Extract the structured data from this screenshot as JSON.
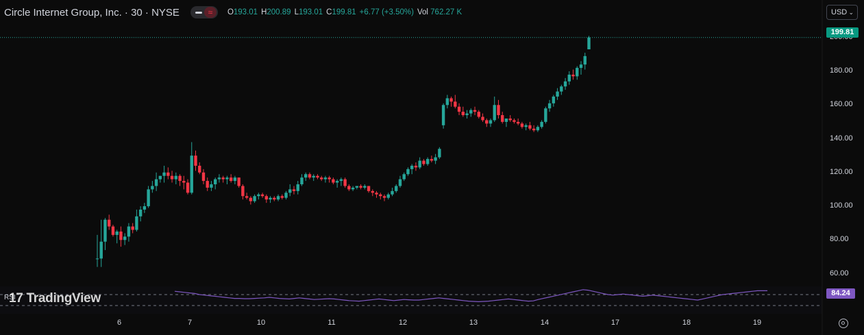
{
  "header": {
    "symbol": "Circle Internet Group, Inc. · 30 · NYSE",
    "open_label": "O",
    "open": "193.01",
    "high_label": "H",
    "high": "200.89",
    "low_label": "L",
    "low": "193.01",
    "close_label": "C",
    "close": "199.81",
    "change": "+6.77 (+3.50%)",
    "vol_label": "Vol",
    "volume": "762.27 K",
    "currency": "USD"
  },
  "colors": {
    "up": "#26a69a",
    "down": "#f23645",
    "rsi": "#7e57c2",
    "price_tag": "#089981"
  },
  "last_price_tag": "199.81",
  "rsi": {
    "label": "RSI",
    "value": "84.24"
  },
  "watermark": {
    "mark": "17",
    "brand": "Trading",
    "brand2": "View"
  },
  "chart_data": {
    "type": "candlestick",
    "title": "Circle Internet Group, Inc. · 30 · NYSE",
    "y_ticks": [
      "200.00",
      "180.00",
      "160.00",
      "140.00",
      "120.00",
      "100.00",
      "80.00",
      "60.00"
    ],
    "y_tick_values": [
      200,
      180,
      160,
      140,
      120,
      100,
      80,
      60
    ],
    "ylim": [
      52.5,
      206
    ],
    "x_tick_labels": [
      "6",
      "7",
      "10",
      "11",
      "12",
      "13",
      "14",
      "17",
      "18",
      "19"
    ],
    "grid": false,
    "ohlc": [
      [
        69,
        83,
        64,
        69
      ],
      [
        69,
        92,
        64,
        79
      ],
      [
        79,
        93,
        74,
        92
      ],
      [
        92,
        95,
        86,
        88
      ],
      [
        88,
        89,
        82,
        83
      ],
      [
        83,
        86,
        78,
        85
      ],
      [
        85,
        88,
        76,
        80
      ],
      [
        80,
        84,
        77,
        82
      ],
      [
        82,
        90,
        79,
        88
      ],
      [
        88,
        90,
        84,
        86
      ],
      [
        86,
        98,
        85,
        94
      ],
      [
        94,
        100,
        91,
        98
      ],
      [
        98,
        102,
        96,
        100
      ],
      [
        100,
        112,
        99,
        110
      ],
      [
        110,
        115,
        108,
        112
      ],
      [
        112,
        120,
        109,
        116
      ],
      [
        116,
        118,
        114,
        118
      ],
      [
        118,
        124,
        114,
        120
      ],
      [
        120,
        123,
        116,
        118
      ],
      [
        118,
        121,
        114,
        116
      ],
      [
        116,
        120,
        113,
        118
      ],
      [
        118,
        119,
        112,
        115
      ],
      [
        115,
        118,
        110,
        114
      ],
      [
        114,
        116,
        107,
        108
      ],
      [
        108,
        138,
        107,
        130
      ],
      [
        130,
        133,
        121,
        124
      ],
      [
        124,
        126,
        119,
        120
      ],
      [
        120,
        122,
        113,
        115
      ],
      [
        115,
        117,
        109,
        111
      ],
      [
        111,
        115,
        109,
        113
      ],
      [
        113,
        117,
        110,
        116
      ],
      [
        116,
        119,
        114,
        117
      ],
      [
        117,
        118,
        114,
        116
      ],
      [
        116,
        118,
        113,
        117
      ],
      [
        117,
        119,
        114,
        115
      ],
      [
        115,
        118,
        113,
        117
      ],
      [
        117,
        117,
        111,
        112
      ],
      [
        112,
        113,
        104,
        106
      ],
      [
        106,
        108,
        104,
        105
      ],
      [
        105,
        106,
        101,
        103
      ],
      [
        103,
        107,
        102,
        106
      ],
      [
        106,
        108,
        104,
        107
      ],
      [
        107,
        108,
        105,
        106
      ],
      [
        106,
        107,
        102,
        104
      ],
      [
        104,
        106,
        102,
        105
      ],
      [
        105,
        106,
        103,
        104
      ],
      [
        104,
        107,
        103,
        106
      ],
      [
        106,
        107,
        104,
        105
      ],
      [
        105,
        109,
        104,
        108
      ],
      [
        108,
        113,
        106,
        110
      ],
      [
        110,
        112,
        107,
        109
      ],
      [
        109,
        115,
        107,
        113
      ],
      [
        113,
        119,
        112,
        117
      ],
      [
        117,
        120,
        115,
        119
      ],
      [
        119,
        120,
        116,
        117
      ],
      [
        117,
        119,
        115,
        118
      ],
      [
        118,
        119,
        116,
        117
      ],
      [
        117,
        118,
        115,
        116
      ],
      [
        116,
        118,
        114,
        117
      ],
      [
        117,
        118,
        114,
        116
      ],
      [
        116,
        117,
        113,
        114
      ],
      [
        114,
        116,
        111,
        115
      ],
      [
        115,
        117,
        112,
        116
      ],
      [
        116,
        117,
        111,
        112
      ],
      [
        112,
        113,
        109,
        110
      ],
      [
        110,
        112,
        109,
        111
      ],
      [
        111,
        112,
        110,
        112
      ],
      [
        112,
        113,
        110,
        111
      ],
      [
        111,
        113,
        110,
        112
      ],
      [
        112,
        112,
        108,
        109
      ],
      [
        109,
        110,
        106,
        108
      ],
      [
        108,
        109,
        105,
        107
      ],
      [
        107,
        108,
        104,
        106
      ],
      [
        106,
        107,
        103,
        105
      ],
      [
        105,
        108,
        104,
        107
      ],
      [
        107,
        111,
        106,
        109
      ],
      [
        109,
        113,
        108,
        112
      ],
      [
        112,
        118,
        111,
        116
      ],
      [
        116,
        120,
        115,
        119
      ],
      [
        119,
        123,
        118,
        122
      ],
      [
        122,
        125,
        119,
        124
      ],
      [
        124,
        126,
        121,
        123
      ],
      [
        123,
        129,
        122,
        127
      ],
      [
        127,
        128,
        124,
        125
      ],
      [
        125,
        129,
        124,
        128
      ],
      [
        128,
        130,
        126,
        127
      ],
      [
        127,
        131,
        125,
        129
      ],
      [
        129,
        135,
        128,
        134
      ],
      [
        148,
        161,
        146,
        160
      ],
      [
        160,
        166,
        158,
        164
      ],
      [
        164,
        165,
        159,
        162
      ],
      [
        162,
        166,
        158,
        159
      ],
      [
        159,
        161,
        154,
        156
      ],
      [
        156,
        159,
        153,
        154
      ],
      [
        154,
        157,
        152,
        155
      ],
      [
        155,
        158,
        153,
        157
      ],
      [
        157,
        159,
        154,
        156
      ],
      [
        156,
        157,
        152,
        153
      ],
      [
        153,
        155,
        150,
        151
      ],
      [
        151,
        152,
        147,
        149
      ],
      [
        149,
        152,
        147,
        151
      ],
      [
        151,
        165,
        150,
        160
      ],
      [
        160,
        163,
        152,
        154
      ],
      [
        154,
        156,
        149,
        150
      ],
      [
        150,
        152,
        147,
        152
      ],
      [
        152,
        154,
        150,
        151
      ],
      [
        151,
        152,
        149,
        150
      ],
      [
        150,
        152,
        148,
        149
      ],
      [
        149,
        150,
        146,
        147
      ],
      [
        147,
        149,
        145,
        148
      ],
      [
        148,
        150,
        145,
        146
      ],
      [
        146,
        148,
        144,
        145
      ],
      [
        145,
        148,
        144,
        147
      ],
      [
        147,
        151,
        146,
        150
      ],
      [
        150,
        159,
        149,
        158
      ],
      [
        158,
        163,
        156,
        161
      ],
      [
        161,
        166,
        159,
        165
      ],
      [
        165,
        170,
        163,
        168
      ],
      [
        168,
        172,
        166,
        171
      ],
      [
        171,
        176,
        169,
        174
      ],
      [
        174,
        180,
        172,
        178
      ],
      [
        178,
        181,
        175,
        177
      ],
      [
        177,
        183,
        175,
        182
      ],
      [
        182,
        186,
        178,
        184
      ],
      [
        184,
        191,
        181,
        189
      ],
      [
        193,
        201,
        193,
        200
      ]
    ],
    "rsi_levels": [
      70,
      30
    ],
    "rsi_series": [
      82,
      80,
      78,
      76,
      74,
      70,
      68,
      66,
      64,
      62,
      60,
      58,
      56,
      56,
      55,
      55,
      56,
      57,
      58,
      60,
      58,
      56,
      55,
      54,
      56,
      58,
      56,
      54,
      52,
      53,
      54,
      55,
      54,
      52,
      50,
      48,
      47,
      46,
      48,
      50,
      52,
      54,
      52,
      50,
      48,
      50,
      52,
      51,
      50,
      50,
      52,
      54,
      56,
      58,
      56,
      54,
      52,
      50,
      48,
      46,
      45,
      44,
      45,
      46,
      48,
      50,
      52,
      54,
      52,
      50,
      48,
      46,
      47,
      52,
      56,
      60,
      64,
      68,
      72,
      76,
      80,
      84,
      88,
      86,
      82,
      78,
      74,
      70,
      68,
      70,
      72,
      70,
      68,
      66,
      64,
      66,
      68,
      66,
      64,
      62,
      60,
      58,
      56,
      54,
      52,
      50,
      54,
      58,
      62,
      66,
      70,
      72,
      74,
      76,
      78,
      80,
      82,
      84,
      84,
      84
    ]
  }
}
